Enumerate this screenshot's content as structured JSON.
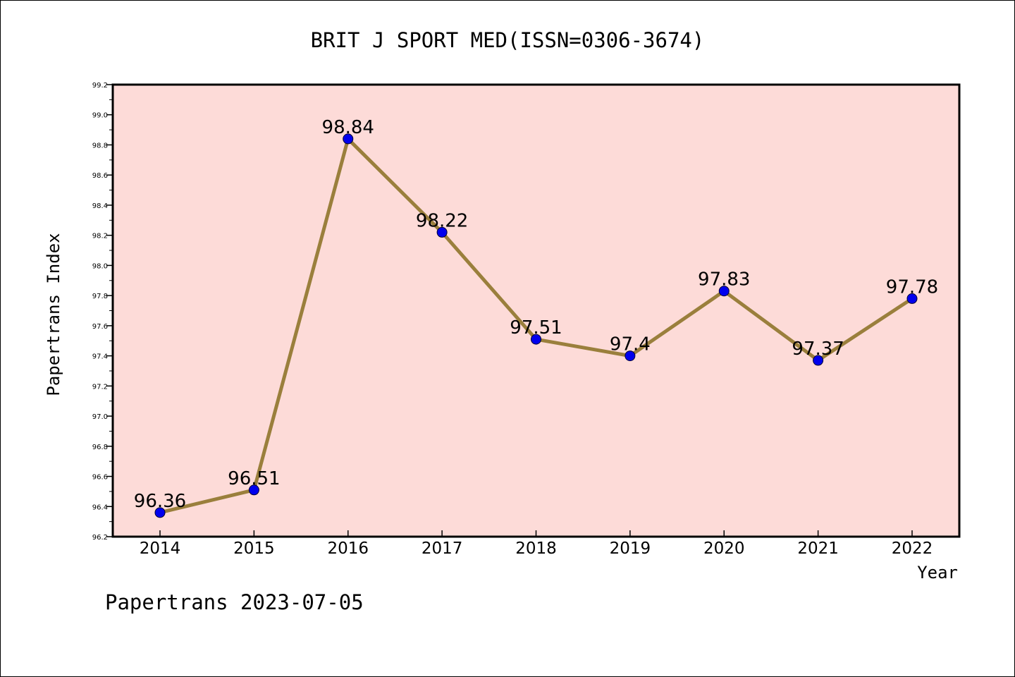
{
  "chart_data": {
    "type": "line",
    "title": "BRIT J SPORT MED(ISSN=0306-3674)",
    "xlabel": "Year",
    "ylabel": "Papertrans Index",
    "categories": [
      "2014",
      "2015",
      "2016",
      "2017",
      "2018",
      "2019",
      "2020",
      "2021",
      "2022"
    ],
    "values": [
      96.36,
      96.51,
      98.84,
      98.22,
      97.51,
      97.4,
      97.83,
      97.37,
      97.78
    ],
    "data_labels": [
      "96.36",
      "96.51",
      "98.84",
      "98.22",
      "97.51",
      "97.4",
      "97.83",
      "97.37",
      "97.78"
    ],
    "ylim": [
      96.2,
      99.2
    ],
    "yticks": [
      "96.2",
      "96.4",
      "96.6",
      "96.8",
      "97.0",
      "97.2",
      "97.4",
      "97.6",
      "97.8",
      "98.0",
      "98.2",
      "98.4",
      "98.6",
      "98.8",
      "99.0",
      "99.2"
    ],
    "grid": false,
    "colors": {
      "plot_background": "#fddbd8",
      "line": "#9a7f3c",
      "marker": "#0000ee"
    }
  },
  "footer": "Papertrans 2023-07-05"
}
